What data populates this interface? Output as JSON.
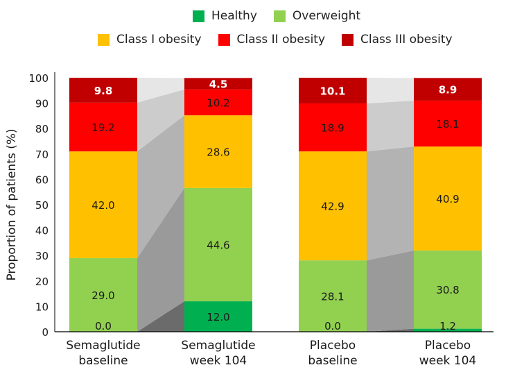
{
  "chart_data": {
    "type": "bar",
    "subtype": "stacked-100-with-flow-bands",
    "title": "",
    "xlabel": "",
    "ylabel": "Proportion of patients (%)",
    "ylim": [
      0,
      100
    ],
    "yticks": [
      0,
      10,
      20,
      30,
      40,
      50,
      60,
      70,
      80,
      90,
      100
    ],
    "grid": false,
    "legend_position": "top-center",
    "categories": [
      [
        "Semaglutide",
        "baseline"
      ],
      [
        "Semaglutide",
        "week 104"
      ],
      [
        "Placebo",
        "baseline"
      ],
      [
        "Placebo",
        "week 104"
      ]
    ],
    "groups": [
      {
        "name": "Semaglutide",
        "bars": [
          0,
          1
        ]
      },
      {
        "name": "Placebo",
        "bars": [
          2,
          3
        ]
      }
    ],
    "series": [
      {
        "name": "Healthy",
        "color": "#00b050",
        "label_color": "#1a1a1a",
        "values": [
          0.0,
          12.0,
          0.0,
          1.2
        ]
      },
      {
        "name": "Overweight",
        "color": "#92d050",
        "label_color": "#1a1a1a",
        "values": [
          29.0,
          44.6,
          28.1,
          30.8
        ]
      },
      {
        "name": "Class I obesity",
        "color": "#ffc000",
        "label_color": "#1a1a1a",
        "values": [
          42.0,
          28.6,
          42.9,
          40.9
        ]
      },
      {
        "name": "Class II obesity",
        "color": "#ff0000",
        "label_color": "#1a1a1a",
        "values": [
          19.2,
          10.2,
          18.9,
          18.1
        ]
      },
      {
        "name": "Class III obesity",
        "color": "#c00000",
        "label_color": "#ffffff",
        "values": [
          9.8,
          4.5,
          10.1,
          8.9
        ]
      }
    ],
    "flow_band_colors": [
      "#6b6b6b",
      "#9a9a9a",
      "#b3b3b3",
      "#cccccc",
      "#e6e6e6"
    ],
    "legend_rows": [
      [
        "Healthy",
        "Overweight"
      ],
      [
        "Class I obesity",
        "Class II obesity",
        "Class III obesity"
      ]
    ]
  }
}
